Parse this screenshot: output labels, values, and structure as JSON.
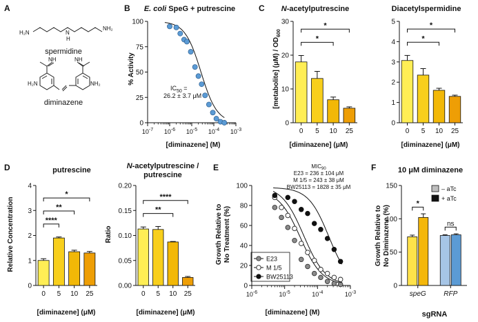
{
  "panel_letters": [
    "A",
    "B",
    "C",
    "D",
    "E",
    "F"
  ],
  "structures": {
    "top_label": "spermidine",
    "bottom_label": "diminazene",
    "atoms": {
      "h2n": "H₂N",
      "nh2": "NH₂",
      "n": "N",
      "h": "H",
      "nh": "NH",
      "h2n_sub": "H₂N"
    }
  },
  "colors": {
    "bar_yellow_light": "#FFEE55",
    "bar_yellow": "#F8CF1C",
    "bar_gold": "#F2B807",
    "bar_orange": "#EE9E05",
    "scatter_blue": "#5B9BD5",
    "bar_atc_minus_speg": "#FFE24A",
    "bar_atc_plus_speg": "#F4B70A",
    "bar_atc_minus_rfp": "#A6C5E6",
    "bar_atc_plus_rfp": "#5B9BD5",
    "legend_minus": "#bdbdbd",
    "legend_plus": "#111111"
  },
  "chart_data": [
    {
      "id": "B",
      "type": "scatter",
      "title_italic": "E. coli",
      "title_rest": " SpeG + putrescine",
      "xlabel": "[diminazene] (M)",
      "ylabel": "% Activity",
      "xscale": "log",
      "xlim": [
        1e-07,
        0.001
      ],
      "ylim": [
        0,
        100
      ],
      "yticks": [
        0,
        25,
        50,
        75,
        100
      ],
      "xticks": [
        {
          "v": 1e-07,
          "e": "-7"
        },
        {
          "v": 1e-06,
          "e": "-6"
        },
        {
          "v": 1e-05,
          "e": "-5"
        },
        {
          "v": 0.0001,
          "e": "-4"
        },
        {
          "v": 0.001,
          "e": "-3"
        }
      ],
      "points": [
        [
          1e-06,
          95
        ],
        [
          2e-06,
          94
        ],
        [
          3e-06,
          88
        ],
        [
          4.5e-06,
          82
        ],
        [
          6e-06,
          80
        ],
        [
          9e-06,
          70
        ],
        [
          1.4e-05,
          55
        ],
        [
          2e-05,
          46
        ],
        [
          2.8e-05,
          38
        ],
        [
          4e-05,
          27
        ],
        [
          6e-05,
          18
        ],
        [
          9e-05,
          10
        ],
        [
          0.00013,
          4
        ],
        [
          0.0002,
          1
        ],
        [
          0.0003,
          0
        ]
      ],
      "fit": {
        "ic50": 2.62e-05,
        "hill": 1.2,
        "top": 100,
        "bottom": 0
      },
      "annotation": {
        "line1_prefix": "IC",
        "line1_sub": "50",
        "line1_suffix": " =",
        "line2": "26.2 ± 3.7 μM"
      }
    },
    {
      "id": "C1",
      "type": "bar",
      "title_italic": "N",
      "title_rest": "-acetylputrescine",
      "ylabel_prefix": "[metabolite] (μM) / OD",
      "ylabel_sub": "600",
      "xlabel": "[diminazene] (μM)",
      "categories": [
        "0",
        "5",
        "10",
        "25"
      ],
      "values": [
        18.0,
        13.1,
        6.8,
        4.3
      ],
      "errors": [
        1.9,
        2.1,
        0.8,
        0.4
      ],
      "ylim": [
        0,
        30
      ],
      "yticks": [
        0,
        10,
        20,
        30
      ],
      "sig": [
        {
          "from": 0,
          "to": 3,
          "label": "*"
        },
        {
          "from": 0,
          "to": 2,
          "label": "*"
        }
      ]
    },
    {
      "id": "C2",
      "type": "bar",
      "title": "Diacetylspermidine",
      "xlabel": "[diminazene] (μM)",
      "categories": [
        "0",
        "5",
        "10",
        "25"
      ],
      "values": [
        3.07,
        2.35,
        1.6,
        1.3
      ],
      "errors": [
        0.25,
        0.32,
        0.1,
        0.06
      ],
      "ylim": [
        0,
        5
      ],
      "yticks": [
        0,
        1,
        2,
        3,
        4,
        5
      ],
      "sig": [
        {
          "from": 0,
          "to": 3,
          "label": "*"
        },
        {
          "from": 0,
          "to": 2,
          "label": "*"
        }
      ]
    },
    {
      "id": "D1",
      "type": "bar",
      "title": "putrescine",
      "ylabel": "Relative Concentration",
      "xlabel": "[diminazene] (μM)",
      "categories": [
        "0",
        "5",
        "10",
        "25"
      ],
      "values": [
        1.0,
        1.9,
        1.35,
        1.3
      ],
      "errors": [
        0.07,
        0.04,
        0.06,
        0.06
      ],
      "ylim": [
        0,
        4
      ],
      "yticks": [
        0,
        1,
        2,
        3,
        4
      ],
      "sig": [
        {
          "from": 0,
          "to": 3,
          "label": "*"
        },
        {
          "from": 0,
          "to": 2,
          "label": "**"
        },
        {
          "from": 0,
          "to": 1,
          "label": "****"
        }
      ]
    },
    {
      "id": "D2",
      "type": "bar",
      "title_line1_italic": "N",
      "title_line1_rest": "-acetylputrescine /",
      "title_line2": "putrescine",
      "ylabel": "Ratio",
      "xlabel": "[diminazene] (μM)",
      "categories": [
        "0",
        "5",
        "10",
        "25"
      ],
      "values": [
        0.113,
        0.112,
        0.087,
        0.016
      ],
      "errors": [
        0.004,
        0.006,
        0.001,
        0.002
      ],
      "ylim": [
        0,
        0.2
      ],
      "yticks": [
        0.0,
        0.05,
        0.1,
        0.15,
        0.2
      ],
      "ytick_labels": [
        "0.00",
        "0.05",
        "0.10",
        "0.15",
        "0.20"
      ],
      "sig": [
        {
          "from": 0,
          "to": 3,
          "label": "****"
        },
        {
          "from": 0,
          "to": 2,
          "label": "**"
        }
      ]
    },
    {
      "id": "E",
      "type": "scatter",
      "ylabel_line1": "Growth Relative to",
      "ylabel_line2": "No Treatment (%)",
      "xlabel": "[diminazene] (M)",
      "xscale": "log",
      "xlim": [
        1e-06,
        0.001
      ],
      "ylim": [
        0,
        100
      ],
      "yticks": [
        0,
        20,
        40,
        60,
        80,
        100
      ],
      "xticks": [
        {
          "v": 1e-06,
          "e": "-6"
        },
        {
          "v": 1e-05,
          "e": "-5"
        },
        {
          "v": 0.0001,
          "e": "-4"
        },
        {
          "v": 0.001,
          "e": "-3"
        }
      ],
      "mic_title_prefix": "MIC",
      "mic_title_sub": "90",
      "mic_lines": [
        "E23 = 236 ± 104 μM",
        "M 1/5 = 243 ± 38 μM",
        "BW25113 = 1828 ± 35 μM"
      ],
      "series": [
        {
          "name": "E23",
          "style": "gray",
          "points": [
            [
              5e-06,
              78
            ],
            [
              8e-06,
              68
            ],
            [
              1.25e-05,
              58
            ],
            [
              2e-05,
              45
            ],
            [
              3.2e-05,
              26
            ],
            [
              5e-05,
              19
            ],
            [
              8e-05,
              12
            ],
            [
              0.000125,
              8
            ],
            [
              0.0002,
              4
            ],
            [
              0.00032,
              2
            ],
            [
              0.0005,
              1
            ]
          ],
          "fit": {
            "ic50": 3e-05,
            "hill": 1.3,
            "top": 96
          }
        },
        {
          "name": "M 1/5",
          "style": "open",
          "points": [
            [
              5e-06,
              88
            ],
            [
              8e-06,
              78
            ],
            [
              1.25e-05,
              70
            ],
            [
              2e-05,
              57
            ],
            [
              3.2e-05,
              42
            ],
            [
              5e-05,
              33
            ],
            [
              8e-05,
              25
            ],
            [
              0.000125,
              16
            ],
            [
              0.0002,
              12
            ],
            [
              0.00032,
              8
            ],
            [
              0.0005,
              6
            ]
          ],
          "fit": {
            "ic50": 3.8e-05,
            "hill": 1.3,
            "top": 100
          }
        },
        {
          "name": "BW25113",
          "style": "filled",
          "points": [
            [
              5e-06,
              90
            ],
            [
              1.25e-05,
              88
            ],
            [
              2e-05,
              84
            ],
            [
              3.2e-05,
              76
            ],
            [
              5e-05,
              72
            ],
            [
              8e-05,
              62
            ],
            [
              0.000125,
              56
            ],
            [
              0.0002,
              47
            ],
            [
              0.00032,
              36
            ],
            [
              0.0005,
              24
            ]
          ],
          "fit": {
            "ic50": 0.00022,
            "hill": 1.4,
            "top": 98
          }
        }
      ]
    },
    {
      "id": "F",
      "type": "bar",
      "title": "10 μM diminazene",
      "ylabel_line1": "Growth Relative to",
      "ylabel_line2": "No Diminazene (%)",
      "xlabel": "sgRNA",
      "groups": [
        {
          "label": "speG",
          "italic": true
        },
        {
          "label": "RFP",
          "italic": true
        }
      ],
      "series": [
        {
          "name": "– aTc",
          "values": [
            73,
            75
          ],
          "errors": [
            2.5,
            1.0
          ]
        },
        {
          "name": "+ aTc",
          "values": [
            102,
            76
          ],
          "errors": [
            5.5,
            1.5
          ]
        }
      ],
      "ylim": [
        0,
        150
      ],
      "yticks": [
        0,
        50,
        100,
        150
      ],
      "sig": [
        {
          "group": 0,
          "label": "*"
        },
        {
          "group": 1,
          "label": "ns"
        }
      ]
    }
  ]
}
